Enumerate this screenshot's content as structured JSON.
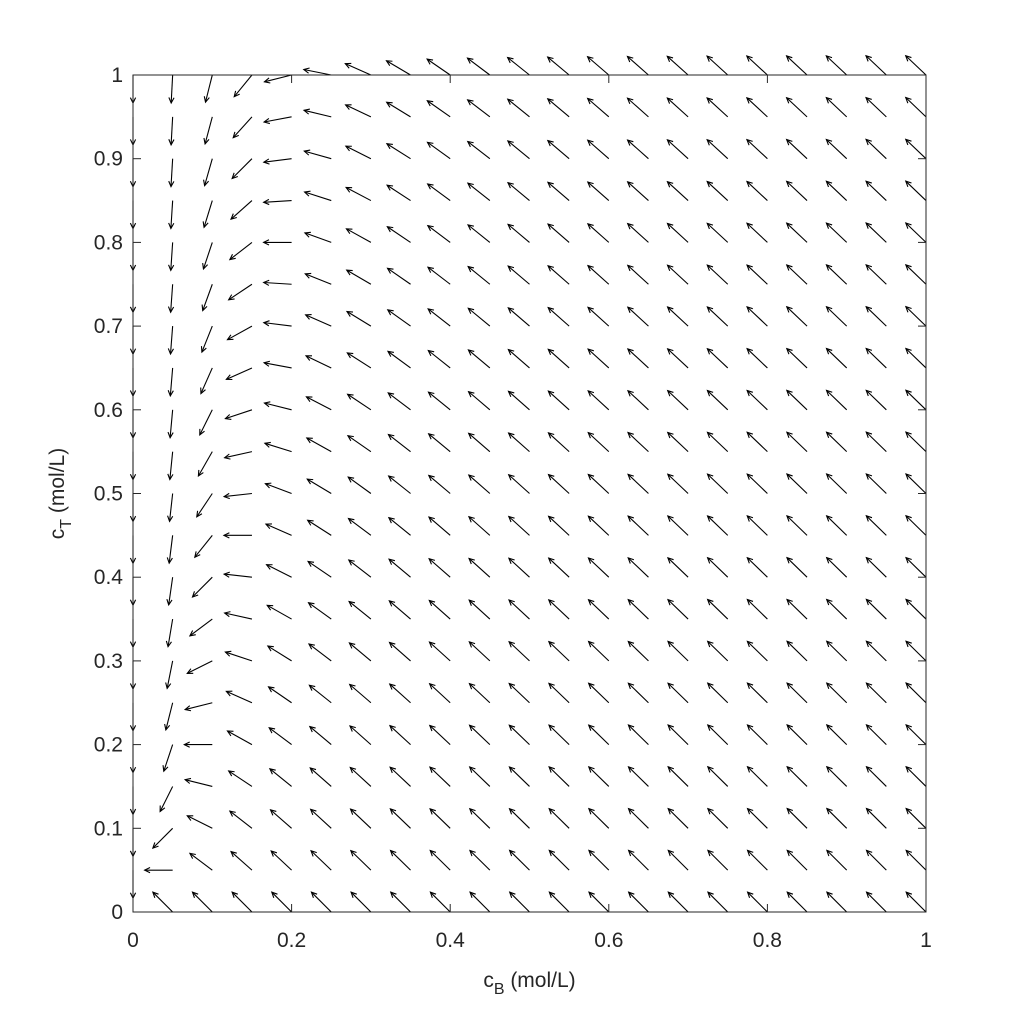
{
  "chart_data": {
    "type": "quiver",
    "title": "",
    "xlabel": {
      "base": "c",
      "sub": "B",
      "rest": " (mol/L)"
    },
    "ylabel": {
      "base": "c",
      "sub": "T",
      "rest": " (mol/L)"
    },
    "xlim": [
      0,
      1
    ],
    "ylim": [
      0,
      1
    ],
    "xticks": [
      "0",
      "0.2",
      "0.4",
      "0.6",
      "0.8",
      "1"
    ],
    "yticks": [
      "0",
      "0.1",
      "0.2",
      "0.3",
      "0.4",
      "0.5",
      "0.6",
      "0.7",
      "0.8",
      "0.9",
      "1"
    ],
    "grid": false,
    "box": true,
    "field": {
      "description": "direction field on a 21 x 21 grid, normalized arrows",
      "x_range": [
        0,
        1,
        21
      ],
      "y_range": [
        0,
        1,
        21
      ],
      "dcB_dt": "-cB",
      "dcT_dt": "cB - 0.05*cT/cB"
    },
    "arrow_color": "#000000"
  }
}
